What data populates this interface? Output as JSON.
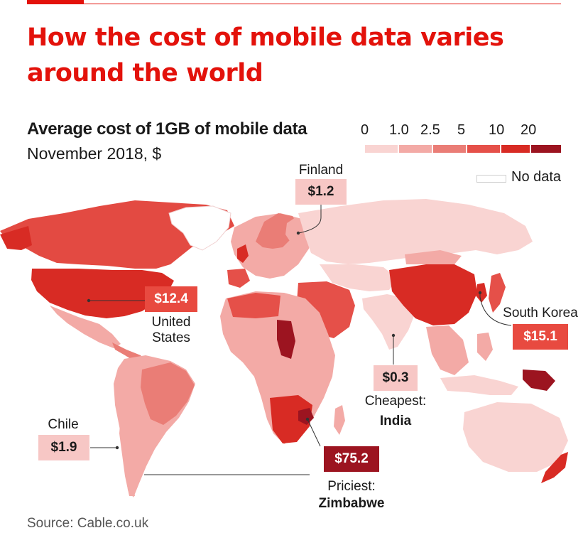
{
  "title": "How the cost of mobile data varies around the world",
  "subtitle": "Average cost of 1GB of mobile data",
  "subtitle_date": "November 2018, $",
  "legend": {
    "ticks": [
      "0",
      "1.0",
      "2.5",
      "5",
      "10",
      "20"
    ],
    "bins": [
      {
        "range": "0-1.0",
        "color": "#f9d4d2"
      },
      {
        "range": "1.0-2.5",
        "color": "#f3aaa6"
      },
      {
        "range": "2.5-5",
        "color": "#ea7d76"
      },
      {
        "range": "5-10",
        "color": "#e55049"
      },
      {
        "range": "10-20",
        "color": "#d82b24"
      },
      {
        "range": "20+",
        "color": "#9c1420"
      }
    ],
    "no_data": "No data"
  },
  "callouts": {
    "finland": {
      "label": "Finland",
      "value": "$1.2"
    },
    "usa": {
      "value": "$12.4",
      "label": "United States"
    },
    "south_korea": {
      "label": "South Korea",
      "value": "$15.1"
    },
    "india": {
      "value": "$0.3",
      "label": "Cheapest:",
      "country": "India"
    },
    "chile": {
      "label": "Chile",
      "value": "$1.9"
    },
    "zimbabwe": {
      "value": "$75.2",
      "label": "Priciest:",
      "country": "Zimbabwe"
    }
  },
  "source": "Source: Cable.co.uk"
}
